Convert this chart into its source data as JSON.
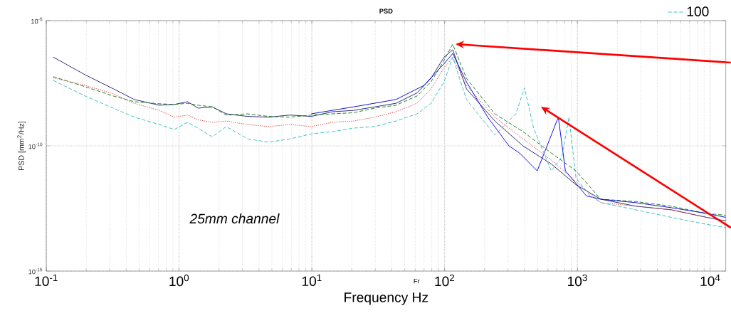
{
  "chart_data": {
    "type": "line",
    "title": "PSD",
    "xlabel": "Frequency Hz",
    "ylabel": "PSD [mm$^{2}$/Hz]",
    "annotations": [
      "25mm channel",
      "Fr"
    ],
    "log": "xy",
    "grid": true,
    "legend": "top right",
    "xlim": [
      0.1,
      13100
    ],
    "ylim": [
      1e-15,
      1e-05
    ],
    "xticks": [
      {
        "value": 0.1,
        "label": "10$^{-1}$"
      },
      {
        "value": 1,
        "label": "10$^{0}$"
      },
      {
        "value": 10,
        "label": "10$^{1}$"
      },
      {
        "value": 100,
        "label": "10$^{2}$"
      },
      {
        "value": 1000,
        "label": "10$^{3}$"
      },
      {
        "value": 10000,
        "label": "10$^{4}$"
      }
    ],
    "yticks": [
      {
        "value": 1e-15,
        "label": "10$^{-15}$"
      },
      {
        "value": 1e-10,
        "label": "10$^{-10}$"
      },
      {
        "value": 1e-05,
        "label": "10$^{-5}$"
      }
    ],
    "x": [
      0.113,
      0.196,
      0.32,
      0.46,
      0.71,
      0.92,
      1.16,
      1.39,
      1.78,
      2.27,
      3.28,
      4.74,
      6.84,
      9.9,
      14.3,
      20.6,
      29.7,
      43,
      62,
      79,
      99,
      115,
      146,
      239,
      389,
      635,
      975,
      1500,
      2750,
      5090,
      9400,
      13100
    ],
    "series": [
      {
        "color": "#202070",
        "line_style": "solid",
        "values": [
          3.5e-07,
          6.9e-08,
          1.9e-08,
          7.1e-09,
          4.2e-09,
          4.5e-09,
          5.8e-09,
          3.2e-09,
          3.6e-09,
          1.9e-09,
          1.5e-09,
          1.4e-09,
          1.7e-09,
          1.5e-09,
          2.3e-09,
          2.6e-09,
          3.6e-09,
          5e-09,
          1.3e-08,
          5e-08,
          3.5e-07,
          6.9e-07,
          1.9e-08,
          9.8e-10,
          1e-10,
          1.9e-11,
          2.8e-12,
          7.4e-13,
          3.9e-13,
          2.8e-13,
          1.4e-13,
          1e-13
        ]
      },
      {
        "color": "#1a7a1a",
        "line_style": "dashed",
        "values": [
          5.8e-08,
          2.3e-08,
          9.8e-09,
          5.8e-09,
          4.8e-09,
          4.5e-09,
          5e-09,
          4.2e-09,
          3.6e-09,
          1.7e-09,
          1.9e-09,
          1.5e-09,
          1.4e-09,
          1.7e-09,
          1.9e-09,
          2.1e-09,
          3.2e-09,
          4.2e-09,
          9.8e-09,
          3.6e-08,
          2.6e-07,
          1.15e-06,
          5e-08,
          1.9e-09,
          3.7e-10,
          5.2e-11,
          1e-11,
          7.4e-13,
          6e-13,
          3.9e-13,
          2e-13,
          1.7e-13
        ]
      },
      {
        "color": "#d04040",
        "line_style": "dotted",
        "values": [
          5.2e-08,
          2.6e-08,
          1.2e-08,
          5e-09,
          2.6e-09,
          1.4e-09,
          1.7e-09,
          1.1e-09,
          8.7e-10,
          9.8e-10,
          7.1e-10,
          5.9e-10,
          7.1e-10,
          5.9e-10,
          8.7e-10,
          9.8e-10,
          1.4e-09,
          2.3e-09,
          5e-09,
          1.9e-08,
          1.3e-07,
          3.5e-07,
          2.6e-08,
          1.4e-09,
          1.9e-10,
          2.7e-11,
          3.8e-12,
          5.4e-13,
          3.9e-13,
          2.8e-13,
          1.4e-13,
          1e-13
        ]
      },
      {
        "color": "#0000dd",
        "line_style": "solid",
        "x": [
          9.9,
          20.6,
          43,
          70,
          99,
          115,
          146,
          211,
          305,
          366,
          498,
          718,
          812,
          1170,
          1500,
          2750,
          5090,
          9400,
          13100
        ],
        "values": [
          1.9e-09,
          3.6e-09,
          7.1e-09,
          2.6e-08,
          1.9e-07,
          4.9e-07,
          3.6e-08,
          1.4e-09,
          1e-10,
          5.2e-11,
          1e-11,
          1.4e-09,
          1e-11,
          1e-12,
          7.4e-13,
          5.4e-13,
          3.4e-13,
          2e-13,
          1.4e-13
        ]
      },
      {
        "name": "100",
        "color": "#30c0c0",
        "line_style": "dashed",
        "x": [
          0.113,
          0.196,
          0.32,
          0.46,
          0.71,
          0.92,
          1.16,
          1.39,
          1.78,
          2.27,
          3.28,
          4.74,
          6.84,
          9.9,
          14.3,
          20.6,
          29.7,
          43,
          62,
          79,
          99,
          115,
          146,
          239,
          344,
          399,
          468,
          635,
          764,
          863,
          975,
          1250,
          1500,
          2750,
          5090,
          9400,
          13100
        ],
        "values": [
          4.1e-08,
          9.8e-09,
          3.2e-09,
          1.4e-09,
          7.1e-10,
          4.5e-10,
          8.7e-10,
          5.1e-10,
          2.3e-10,
          5.9e-10,
          1.9e-10,
          1.4e-10,
          1.9e-10,
          3e-10,
          3.7e-10,
          5.1e-10,
          5.9e-10,
          9.8e-10,
          1.9e-09,
          5e-09,
          3.6e-08,
          3.5e-07,
          7.1e-09,
          2.7e-10,
          1.9e-09,
          2.1e-08,
          5.1e-10,
          1e-11,
          3.7e-11,
          1.4e-09,
          5.2e-12,
          1e-12,
          5.4e-13,
          2.8e-13,
          1.4e-13,
          7.4e-14,
          5.4e-14
        ]
      }
    ]
  }
}
